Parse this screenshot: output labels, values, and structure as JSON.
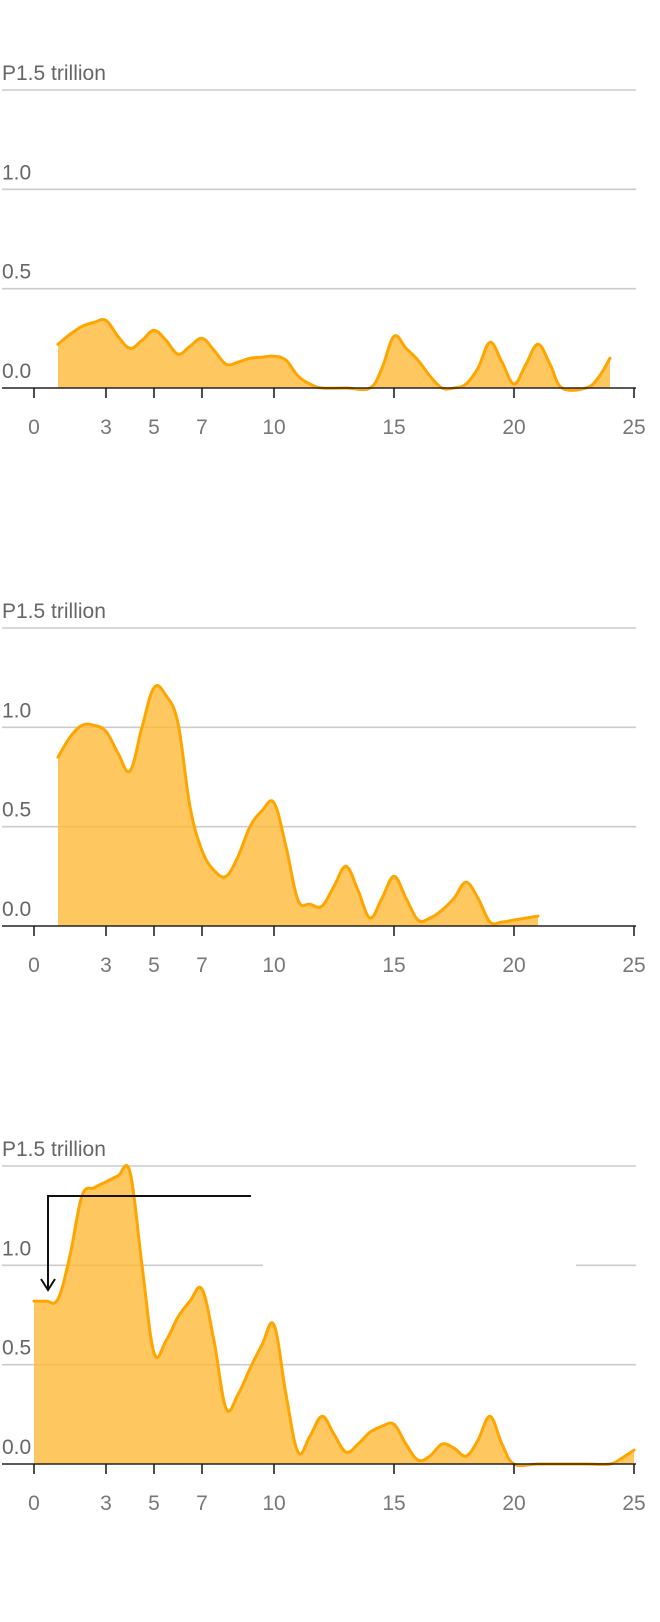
{
  "colors": {
    "fill": "#ffb733",
    "stroke": "#ffa500",
    "grid": "#cccccc",
    "axis": "#222222"
  },
  "chart_data": [
    {
      "type": "area",
      "y_tick_labels": [
        "0.0",
        "0.5",
        "1.0",
        "P1.5 trillion"
      ],
      "y_ticks": [
        0,
        0.5,
        1.0,
        1.5
      ],
      "x_tick_labels": [
        "0",
        "3",
        "5",
        "7",
        "10",
        "15",
        "20",
        "25"
      ],
      "x_ticks": [
        0,
        3,
        5,
        7,
        10,
        15,
        20,
        25
      ],
      "xlim": [
        0,
        25
      ],
      "ylim": [
        0,
        1.5
      ],
      "grid": true,
      "series": [
        {
          "x": [
            1,
            1.5,
            2,
            2.5,
            3,
            3.5,
            4,
            4.5,
            5,
            5.5,
            6,
            6.5,
            7,
            7.5,
            8,
            8.5,
            9,
            9.5,
            10,
            10.5,
            11,
            11.5,
            12,
            13,
            14,
            14.5,
            15,
            15.5,
            16,
            16.5,
            17,
            17.5,
            18,
            18.5,
            19,
            19.5,
            20,
            20.5,
            21,
            21.5,
            22,
            23,
            23.5,
            24
          ],
          "y": [
            0.22,
            0.27,
            0.31,
            0.33,
            0.34,
            0.26,
            0.2,
            0.24,
            0.29,
            0.24,
            0.17,
            0.21,
            0.25,
            0.19,
            0.12,
            0.13,
            0.15,
            0.155,
            0.16,
            0.14,
            0.06,
            0.02,
            0.0,
            0.0,
            0.0,
            0.1,
            0.26,
            0.2,
            0.14,
            0.06,
            0.0,
            0.0,
            0.02,
            0.1,
            0.23,
            0.13,
            0.02,
            0.12,
            0.22,
            0.12,
            0.0,
            0.0,
            0.05,
            0.15
          ]
        }
      ]
    },
    {
      "type": "area",
      "y_tick_labels": [
        "0.0",
        "0.5",
        "1.0",
        "P1.5 trillion"
      ],
      "y_ticks": [
        0,
        0.5,
        1.0,
        1.5
      ],
      "x_tick_labels": [
        "0",
        "3",
        "5",
        "7",
        "10",
        "15",
        "20",
        "25"
      ],
      "x_ticks": [
        0,
        3,
        5,
        7,
        10,
        15,
        20,
        25
      ],
      "xlim": [
        0,
        25
      ],
      "ylim": [
        0,
        1.5
      ],
      "grid": true,
      "series": [
        {
          "x": [
            1,
            1.5,
            2,
            2.5,
            3,
            3.5,
            4,
            4.5,
            5,
            5.5,
            6,
            6.5,
            7,
            7.5,
            8,
            8.5,
            9,
            9.5,
            10,
            10.5,
            11,
            11.5,
            12,
            12.5,
            13,
            13.5,
            14,
            14.5,
            15,
            15.5,
            16,
            16.5,
            17,
            17.5,
            18,
            18.5,
            19,
            19.5,
            20,
            20.5,
            21
          ],
          "y": [
            0.85,
            0.95,
            1.01,
            1.01,
            0.98,
            0.87,
            0.78,
            1.0,
            1.2,
            1.16,
            1.02,
            0.6,
            0.38,
            0.28,
            0.25,
            0.35,
            0.5,
            0.58,
            0.62,
            0.4,
            0.13,
            0.11,
            0.1,
            0.2,
            0.3,
            0.18,
            0.04,
            0.14,
            0.25,
            0.14,
            0.03,
            0.04,
            0.08,
            0.14,
            0.22,
            0.14,
            0.02,
            0.02,
            0.03,
            0.04,
            0.05
          ]
        }
      ]
    },
    {
      "type": "area",
      "y_tick_labels": [
        "0.0",
        "0.5",
        "1.0",
        "P1.5 trillion"
      ],
      "y_ticks": [
        0,
        0.5,
        1.0,
        1.5
      ],
      "x_tick_labels": [
        "0",
        "3",
        "5",
        "7",
        "10",
        "15",
        "20",
        "25"
      ],
      "x_ticks": [
        0,
        3,
        5,
        7,
        10,
        15,
        20,
        25
      ],
      "xlim": [
        0,
        25
      ],
      "ylim": [
        0,
        1.5
      ],
      "grid": true,
      "series": [
        {
          "x": [
            0,
            0.5,
            1,
            1.5,
            2,
            2.5,
            3,
            3.5,
            4,
            4.5,
            5,
            5.5,
            6,
            6.5,
            7,
            7.5,
            8,
            8.5,
            9,
            9.5,
            10,
            10.5,
            11,
            11.5,
            12,
            12.5,
            13,
            13.5,
            14,
            14.5,
            15,
            15.5,
            16,
            16.5,
            17,
            17.5,
            18,
            18.5,
            19,
            19.5,
            20,
            21,
            22,
            23,
            24,
            24.5,
            25
          ],
          "y": [
            0.82,
            0.82,
            0.83,
            1.05,
            1.35,
            1.39,
            1.42,
            1.45,
            1.47,
            1.0,
            0.56,
            0.62,
            0.74,
            0.82,
            0.88,
            0.62,
            0.28,
            0.35,
            0.48,
            0.6,
            0.7,
            0.35,
            0.06,
            0.14,
            0.24,
            0.15,
            0.06,
            0.1,
            0.16,
            0.19,
            0.2,
            0.1,
            0.02,
            0.04,
            0.1,
            0.08,
            0.04,
            0.12,
            0.24,
            0.1,
            0.0,
            0.0,
            0.0,
            0.0,
            0.0,
            0.03,
            0.07
          ]
        }
      ]
    }
  ]
}
